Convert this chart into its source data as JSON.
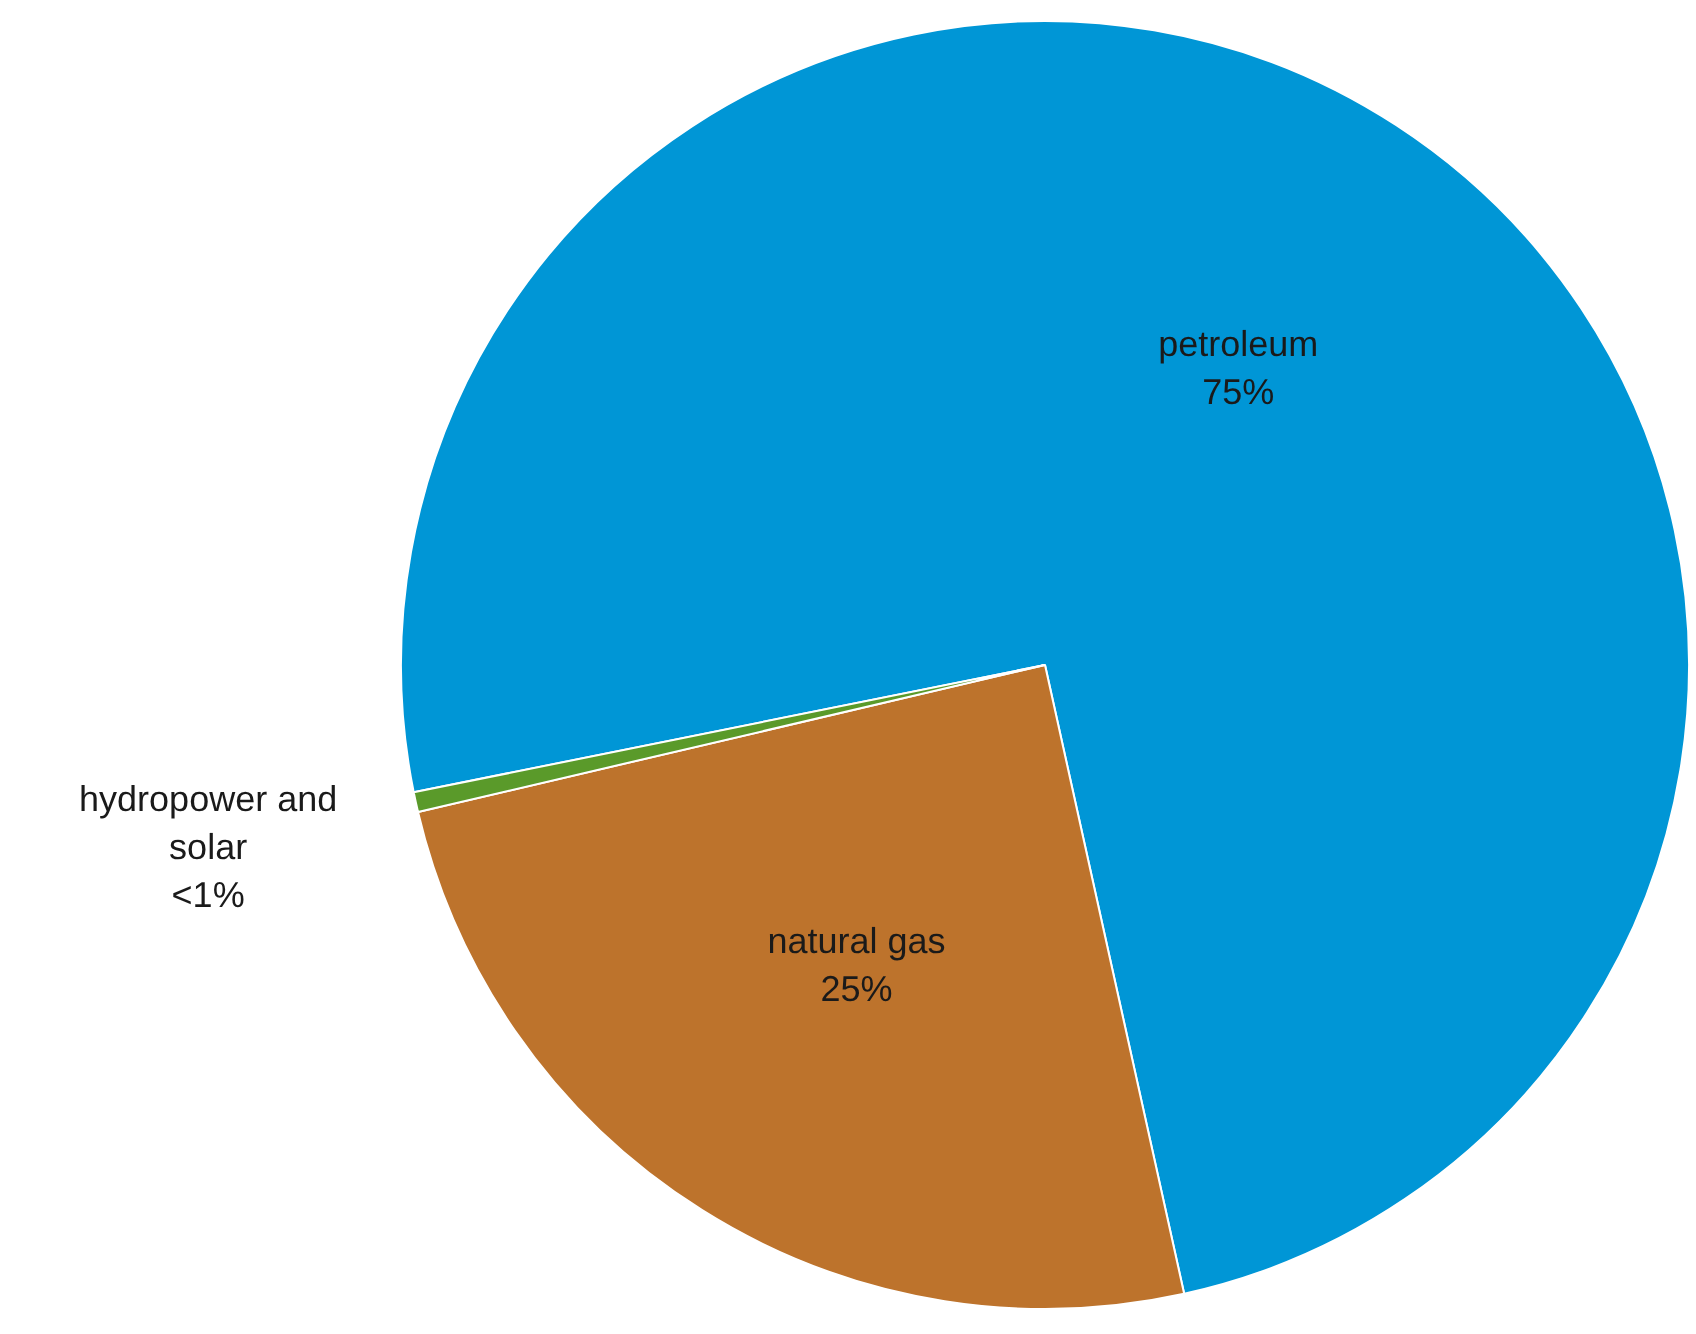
{
  "chart_data": {
    "type": "pie",
    "categories": [
      "petroleum",
      "natural gas",
      "hydropower and solar"
    ],
    "values": [
      74.7,
      24.8,
      0.5
    ],
    "colors": [
      "#0096d6",
      "#bd732c",
      "#5a9a2a"
    ],
    "value_labels": [
      "75%",
      "25%",
      "<1%"
    ]
  }
}
